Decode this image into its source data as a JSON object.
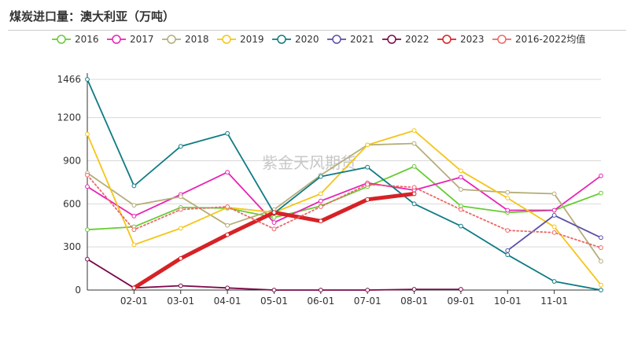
{
  "title": "煤炭进口量：澳大利亚（万吨）",
  "watermark": "紫金天风期货",
  "chart_data": {
    "type": "line",
    "title": "煤炭进口量：澳大利亚（万吨）",
    "x_ticks": [
      "02-01",
      "03-01",
      "04-01",
      "05-01",
      "06-01",
      "07-01",
      "08-01",
      "09-01",
      "10-01",
      "11-01"
    ],
    "ylim": [
      0,
      1466
    ],
    "y_ticks": [
      0,
      300,
      600,
      900,
      1200,
      1466
    ],
    "grid": true,
    "legend_position": "top",
    "series": [
      {
        "name": "2016",
        "color": "#66cc33",
        "dotted": false,
        "width": 1.8,
        "values": [
          420,
          440,
          575,
          570,
          505,
          585,
          720,
          860,
          585,
          540,
          555,
          675
        ]
      },
      {
        "name": "2017",
        "color": "#e823b5",
        "dotted": false,
        "width": 1.8,
        "values": [
          720,
          515,
          665,
          820,
          470,
          620,
          745,
          695,
          785,
          555,
          555,
          795
        ]
      },
      {
        "name": "2018",
        "color": "#b5ad7a",
        "dotted": false,
        "width": 1.8,
        "values": [
          815,
          590,
          650,
          450,
          560,
          800,
          1010,
          1020,
          700,
          680,
          670,
          200
        ]
      },
      {
        "name": "2019",
        "color": "#f5c518",
        "dotted": false,
        "width": 1.8,
        "values": [
          1085,
          315,
          430,
          575,
          540,
          670,
          1010,
          1110,
          830,
          640,
          440,
          35
        ]
      },
      {
        "name": "2020",
        "color": "#0e7b83",
        "dotted": false,
        "width": 1.8,
        "values": [
          1466,
          725,
          1000,
          1090,
          535,
          790,
          855,
          600,
          445,
          245,
          60,
          0
        ]
      },
      {
        "name": "2021",
        "color": "#5a4fa8",
        "dotted": false,
        "width": 1.8,
        "values": [
          null,
          null,
          null,
          null,
          null,
          null,
          null,
          null,
          null,
          275,
          520,
          365
        ]
      },
      {
        "name": "2022",
        "color": "#7a0a4a",
        "dotted": false,
        "width": 1.8,
        "values": [
          215,
          15,
          30,
          15,
          0,
          0,
          0,
          5,
          5,
          null,
          null,
          null
        ]
      },
      {
        "name": "2023",
        "color": "#d62226",
        "dotted": false,
        "width": 5,
        "values": [
          null,
          15,
          220,
          385,
          540,
          480,
          630,
          670,
          null,
          null,
          null,
          null
        ]
      },
      {
        "name": "2016-2022均值",
        "color": "#ee6666",
        "dotted": true,
        "width": 1.8,
        "values": [
          800,
          420,
          560,
          580,
          425,
          580,
          735,
          715,
          560,
          415,
          400,
          295
        ]
      }
    ]
  }
}
